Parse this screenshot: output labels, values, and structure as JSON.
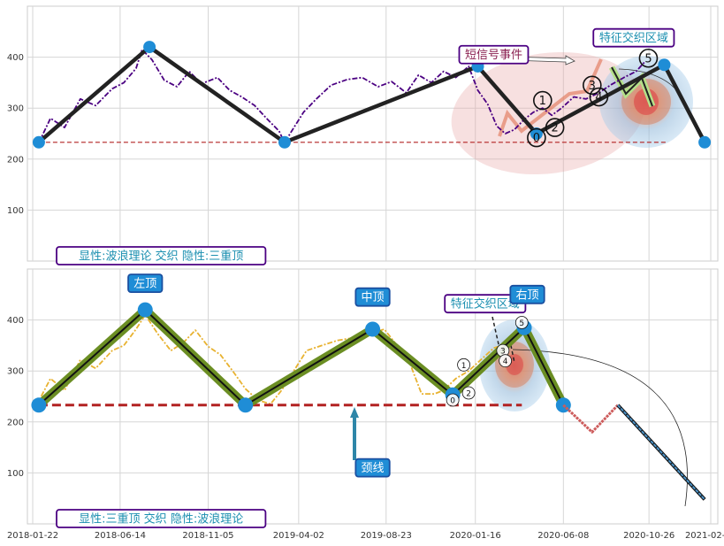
{
  "chart_data": [
    {
      "type": "line",
      "title": "",
      "ylim": [
        0,
        500
      ],
      "yticks": [
        100,
        200,
        300,
        400
      ],
      "grid": true,
      "x_range": [
        "2018-01-22",
        "2021-02-04"
      ],
      "series": [
        {
          "role": "price",
          "color": "#4b0082",
          "style": "dash-dot",
          "x": [
            "2018-02-01",
            "2018-02-20",
            "2018-03-15",
            "2018-04-10",
            "2018-05-05",
            "2018-06-01",
            "2018-06-20",
            "2018-07-10",
            "2018-07-20",
            "2018-08-05",
            "2018-08-25",
            "2018-09-15",
            "2018-10-05",
            "2018-10-25",
            "2018-11-20",
            "2018-12-10",
            "2018-12-30",
            "2019-01-20",
            "2019-02-10",
            "2019-03-01",
            "2019-03-10",
            "2019-03-20",
            "2019-04-10",
            "2019-05-01",
            "2019-05-25",
            "2019-06-20",
            "2019-07-15",
            "2019-08-10",
            "2019-09-01",
            "2019-09-25",
            "2019-10-15",
            "2019-11-05",
            "2019-11-25",
            "2019-12-15",
            "2020-01-05",
            "2020-01-20",
            "2020-02-05",
            "2020-02-20",
            "2020-03-05",
            "2020-03-20",
            "2020-04-05",
            "2020-04-20",
            "2020-05-05",
            "2020-05-20",
            "2020-06-05",
            "2020-06-25",
            "2020-07-15",
            "2020-08-05",
            "2020-08-25",
            "2020-09-15",
            "2020-10-05",
            "2020-10-20"
          ],
          "y": [
            232,
            280,
            262,
            318,
            305,
            338,
            350,
            378,
            415,
            395,
            355,
            342,
            372,
            348,
            360,
            335,
            322,
            305,
            278,
            255,
            232,
            252,
            292,
            318,
            345,
            356,
            360,
            342,
            352,
            330,
            365,
            350,
            372,
            360,
            382,
            335,
            308,
            265,
            250,
            258,
            278,
            292,
            300,
            286,
            300,
            322,
            318,
            330,
            346,
            360,
            372,
            392
          ]
        },
        {
          "role": "baseline",
          "color": "#b22222",
          "style": "dashed",
          "x": [
            "2018-02-01",
            "2020-11-25"
          ],
          "y": [
            233,
            233
          ]
        },
        {
          "role": "zigzag",
          "color": "#222222",
          "x": [
            "2018-02-01",
            "2018-08-01",
            "2019-03-10",
            "2020-01-20",
            "2020-04-25",
            "2020-11-20",
            "2021-01-25"
          ],
          "y": [
            233,
            420,
            233,
            382,
            250,
            385,
            233
          ]
        }
      ],
      "wave_labels": [
        {
          "label": "0",
          "x": "2020-04-25",
          "y": 242
        },
        {
          "label": "1",
          "x": "2020-05-05",
          "y": 315
        },
        {
          "label": "2",
          "x": "2020-05-25",
          "y": 262
        },
        {
          "label": "3",
          "x": "2020-07-25",
          "y": 345
        },
        {
          "label": "4",
          "x": "2020-08-05",
          "y": 322
        },
        {
          "label": "5",
          "x": "2020-10-25",
          "y": 398
        }
      ],
      "annotations": [
        {
          "text": "短信号事件",
          "x": "2020-02-15",
          "y": 405
        },
        {
          "text": "特征交织区域",
          "x": "2020-10-01",
          "y": 438
        },
        {
          "text": "显性:波浪理论 交织 隐性:三重顶",
          "x": "2018-04-01",
          "y": 15
        }
      ]
    },
    {
      "type": "line",
      "title": "",
      "ylim": [
        0,
        500
      ],
      "yticks": [
        100,
        200,
        300,
        400
      ],
      "grid": true,
      "xticks": [
        "2018-01-22",
        "2018-06-14",
        "2018-11-05",
        "2019-04-02",
        "2019-08-23",
        "2020-01-16",
        "2020-06-08",
        "2020-10-26",
        "2021-02-04"
      ],
      "x_range": [
        "2018-01-22",
        "2021-02-04"
      ],
      "series": [
        {
          "role": "price",
          "color": "#e8b230",
          "style": "dash-dot",
          "x": [
            "2018-01-28",
            "2018-02-20",
            "2018-03-15",
            "2018-04-10",
            "2018-05-05",
            "2018-06-01",
            "2018-06-20",
            "2018-07-10",
            "2018-07-25",
            "2018-08-15",
            "2018-09-05",
            "2018-09-25",
            "2018-10-15",
            "2018-11-05",
            "2018-11-25",
            "2018-12-15",
            "2019-01-05",
            "2019-01-25",
            "2019-02-15",
            "2019-03-05",
            "2019-03-25",
            "2019-04-15",
            "2019-05-10",
            "2019-06-05",
            "2019-06-30",
            "2019-07-25",
            "2019-08-20",
            "2019-09-10",
            "2019-09-30",
            "2019-10-20",
            "2019-11-10",
            "2019-11-25",
            "2019-12-15",
            "2020-01-05",
            "2020-01-25",
            "2020-02-15",
            "2020-03-05",
            "2020-03-20",
            "2020-04-05"
          ],
          "y": [
            232,
            285,
            262,
            322,
            305,
            340,
            350,
            382,
            410,
            372,
            340,
            355,
            380,
            348,
            332,
            300,
            265,
            243,
            235,
            262,
            300,
            340,
            350,
            360,
            365,
            372,
            382,
            350,
            318,
            255,
            255,
            262,
            285,
            300,
            322,
            345,
            352,
            368,
            385
          ]
        },
        {
          "role": "baseline",
          "color": "#b22222",
          "style": "dashed",
          "x": [
            "2018-02-01",
            "2020-04-01"
          ],
          "y": [
            233,
            233
          ]
        },
        {
          "role": "zigzag",
          "color": "#556b2f",
          "x": [
            "2018-02-01",
            "2018-07-25",
            "2019-01-05",
            "2019-08-01",
            "2019-12-10",
            "2020-04-05",
            "2020-06-08"
          ],
          "y": [
            233,
            420,
            233,
            382,
            253,
            385,
            233
          ]
        },
        {
          "role": "projection-down",
          "color": "#cd5c5c",
          "x": [
            "2020-06-08",
            "2020-07-25",
            "2020-09-05"
          ],
          "y": [
            233,
            180,
            233
          ]
        },
        {
          "role": "projection-long",
          "color": "#4a90c4",
          "x": [
            "2020-09-05",
            "2021-01-25"
          ],
          "y": [
            233,
            48
          ]
        }
      ],
      "wave_labels": [
        {
          "label": "0",
          "x": "2019-12-10",
          "y": 243
        },
        {
          "label": "1",
          "x": "2019-12-28",
          "y": 312
        },
        {
          "label": "2",
          "x": "2020-01-05",
          "y": 257
        },
        {
          "label": "3",
          "x": "2020-03-01",
          "y": 340
        },
        {
          "label": "4",
          "x": "2020-03-05",
          "y": 320
        },
        {
          "label": "5",
          "x": "2020-04-01",
          "y": 395
        }
      ],
      "annotations": [
        {
          "text": "左顶",
          "x": "2018-07-25",
          "y": 472
        },
        {
          "text": "中顶",
          "x": "2019-08-01",
          "y": 445
        },
        {
          "text": "特征交织区域",
          "x": "2020-02-01",
          "y": 432
        },
        {
          "text": "右顶",
          "x": "2020-04-10",
          "y": 450
        },
        {
          "text": "颈线",
          "x": "2019-08-01",
          "y": 110
        },
        {
          "text": "显性:三重顶 交织 隐性:波浪理论",
          "x": "2018-04-01",
          "y": 15
        }
      ]
    }
  ]
}
